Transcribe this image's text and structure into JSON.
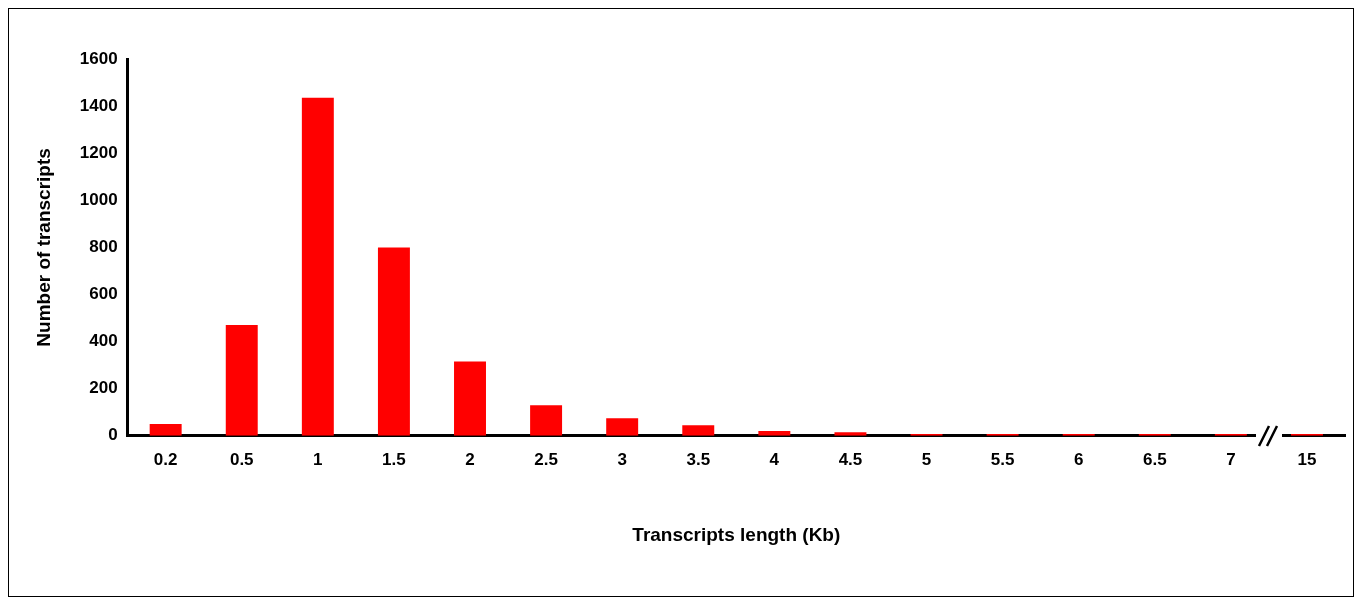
{
  "chart_data": {
    "type": "bar",
    "xlabel": "Transcripts length (Kb)",
    "ylabel": "Number of transcripts",
    "categories": [
      "0.2",
      "0.5",
      "1",
      "1.5",
      "2",
      "2.5",
      "3",
      "3.5",
      "4",
      "4.5",
      "5",
      "5.5",
      "6",
      "6.5",
      "7",
      "15"
    ],
    "values": [
      50,
      470,
      1435,
      800,
      315,
      130,
      75,
      45,
      20,
      15,
      8,
      8,
      8,
      8,
      8,
      8
    ],
    "color": "#ff0000",
    "ylim": [
      0,
      1600
    ],
    "yticks": [
      0,
      200,
      400,
      600,
      800,
      1000,
      1200,
      1400,
      1600
    ],
    "grid": false,
    "legend": false
  }
}
